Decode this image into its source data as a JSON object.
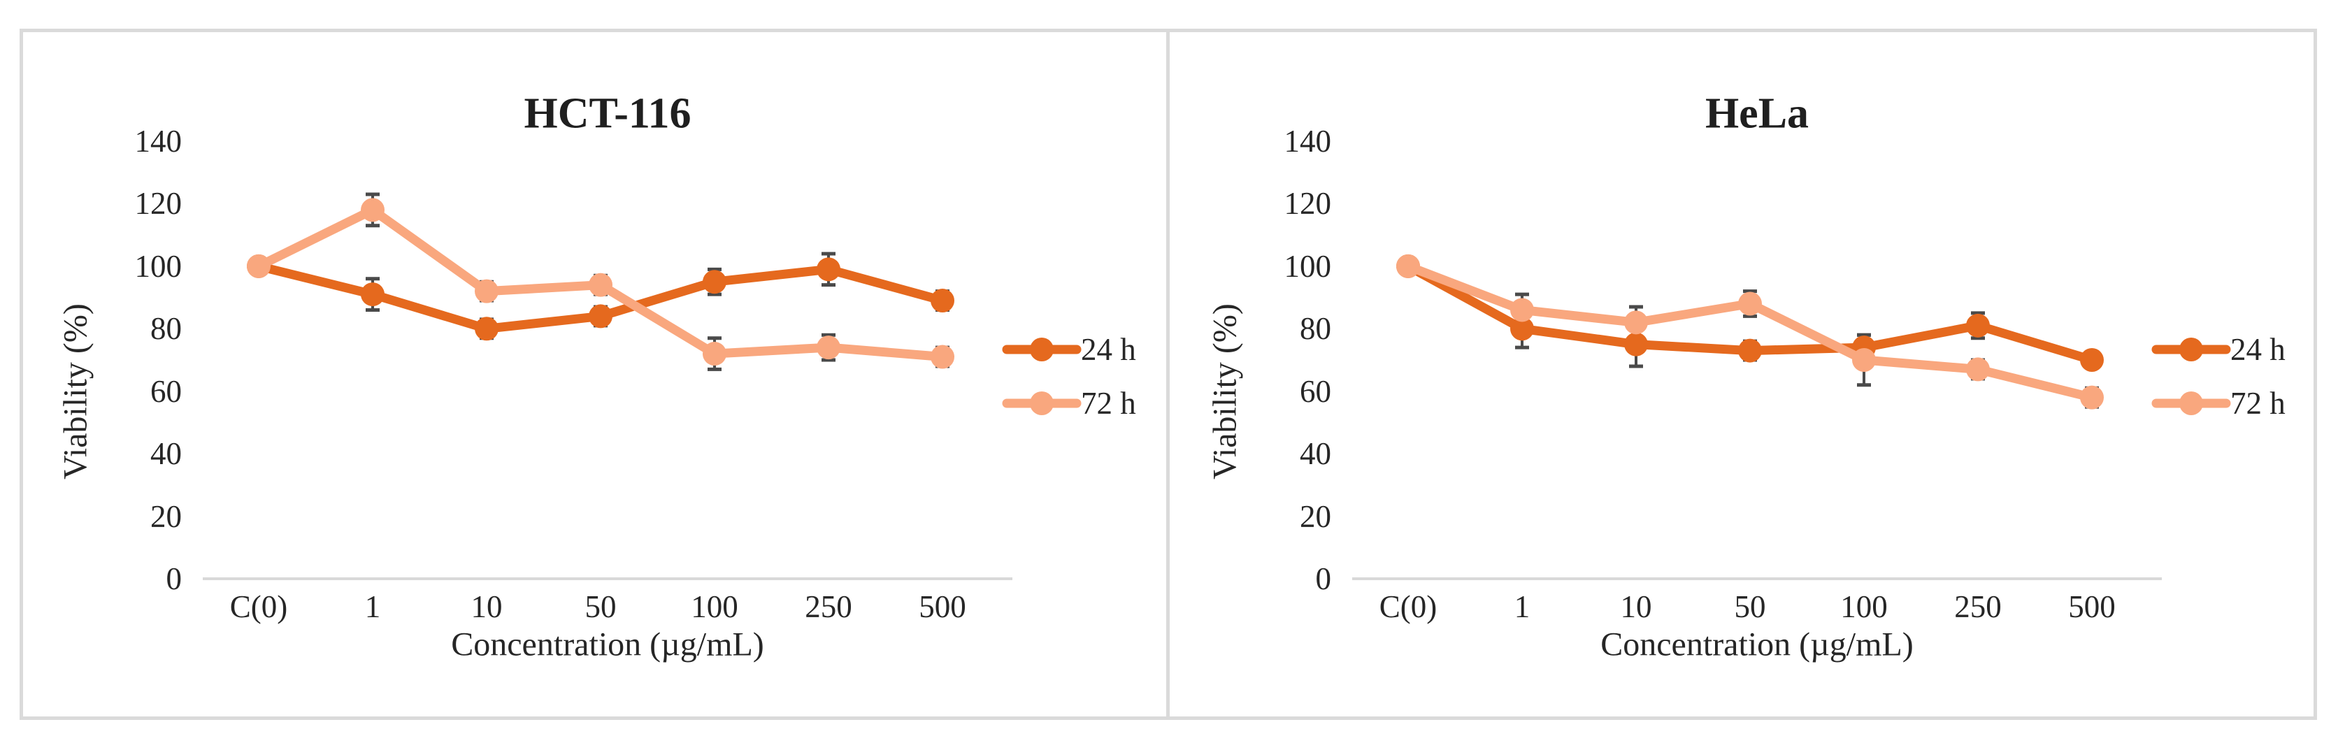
{
  "colors": {
    "series_24h": "#E5691E",
    "series_72h": "#F9A77E",
    "error_bar": "#4A4A4A",
    "axis_line": "#D9D9D9",
    "panel_border": "#DADADA",
    "text": "#262626",
    "background": "#FFFFFF"
  },
  "chart_data": [
    {
      "type": "line",
      "title": "HCT-116",
      "xlabel": "Concentration (µg/mL)",
      "ylabel": "Viability (%)",
      "categories": [
        "C(0)",
        "1",
        "10",
        "50",
        "100",
        "250",
        "500"
      ],
      "yticks": [
        0,
        20,
        40,
        60,
        80,
        100,
        120,
        140
      ],
      "ylim": [
        0,
        140
      ],
      "grid": "off",
      "legend_position": "right",
      "error_bars": true,
      "series": [
        {
          "name": "24 h",
          "color": "#E5691E",
          "values": [
            100,
            91,
            80,
            84,
            95,
            99,
            89
          ],
          "errors": [
            0,
            5,
            3,
            3,
            4,
            5,
            3
          ]
        },
        {
          "name": "72 h",
          "color": "#F9A77E",
          "values": [
            100,
            118,
            92,
            94,
            72,
            74,
            71
          ],
          "errors": [
            0,
            5,
            3,
            3,
            5,
            4,
            3
          ]
        }
      ]
    },
    {
      "type": "line",
      "title": "HeLa",
      "xlabel": "Concentration (µg/mL)",
      "ylabel": "Viability (%)",
      "categories": [
        "C(0)",
        "1",
        "10",
        "50",
        "100",
        "250",
        "500"
      ],
      "yticks": [
        0,
        20,
        40,
        60,
        80,
        100,
        120,
        140
      ],
      "ylim": [
        0,
        140
      ],
      "grid": "off",
      "legend_position": "right",
      "error_bars": true,
      "series": [
        {
          "name": "24 h",
          "color": "#E5691E",
          "values": [
            100,
            80,
            75,
            73,
            74,
            81,
            70
          ],
          "errors": [
            2,
            6,
            7,
            3,
            4,
            4,
            2
          ]
        },
        {
          "name": "72 h",
          "color": "#F9A77E",
          "values": [
            100,
            86,
            82,
            88,
            70,
            67,
            58
          ],
          "errors": [
            2,
            5,
            5,
            4,
            8,
            3,
            3
          ]
        }
      ]
    }
  ]
}
